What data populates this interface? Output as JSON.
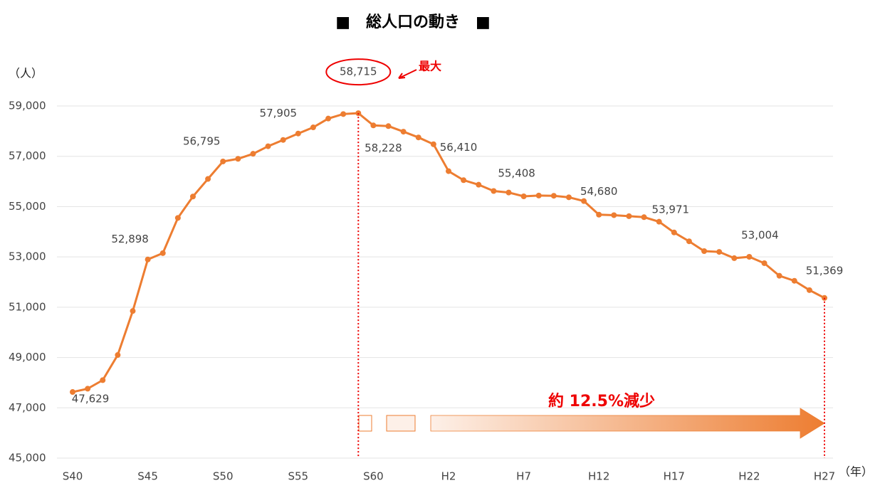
{
  "chart_data": {
    "type": "line",
    "title": "■　総人口の動き　■",
    "y_label": "（人）",
    "x_label": "（年）",
    "annotations": [
      "最大",
      "約 12.5%減少"
    ],
    "categories": [
      "S40",
      null,
      null,
      null,
      null,
      "S45",
      null,
      null,
      null,
      null,
      "S50",
      null,
      null,
      null,
      null,
      "S55",
      null,
      null,
      null,
      null,
      "S60",
      null,
      null,
      null,
      null,
      "H2",
      null,
      null,
      null,
      null,
      "H7",
      null,
      null,
      null,
      null,
      "H12",
      null,
      null,
      null,
      null,
      "H17",
      null,
      null,
      null,
      null,
      "H22",
      null,
      null,
      null,
      null,
      "H27"
    ],
    "series": [
      {
        "name": "総人口",
        "color": "#ed7d31",
        "values": [
          47629,
          47760,
          48100,
          49100,
          50850,
          52898,
          53150,
          54550,
          55400,
          56100,
          56795,
          56900,
          57100,
          57400,
          57650,
          57905,
          58150,
          58500,
          58680,
          58715,
          58228,
          58200,
          57980,
          57750,
          57480,
          56410,
          56050,
          55870,
          55620,
          55560,
          55408,
          55440,
          55430,
          55370,
          55220,
          54680,
          54660,
          54620,
          54580,
          54400,
          53971,
          53620,
          53230,
          53200,
          52950,
          53004,
          52750,
          52250,
          52050,
          51680,
          51369
        ],
        "value_labels": [
          "47,629",
          null,
          null,
          null,
          null,
          "52,898",
          null,
          null,
          null,
          null,
          "56,795",
          null,
          null,
          null,
          null,
          "57,905",
          null,
          null,
          null,
          "58,715",
          "58,228",
          null,
          null,
          null,
          null,
          "56,410",
          null,
          null,
          null,
          null,
          "55,408",
          null,
          null,
          null,
          null,
          "54,680",
          null,
          null,
          null,
          null,
          "53,971",
          null,
          null,
          null,
          null,
          "53,004",
          null,
          null,
          null,
          null,
          "51,369"
        ]
      }
    ],
    "ylim": [
      45000,
      59000
    ],
    "yticks": [
      {
        "value": 45000,
        "label": "45,000"
      },
      {
        "value": 47000,
        "label": "47,000"
      },
      {
        "value": 49000,
        "label": "49,000"
      },
      {
        "value": 51000,
        "label": "51,000"
      },
      {
        "value": 53000,
        "label": "53,000"
      },
      {
        "value": 55000,
        "label": "55,000"
      },
      {
        "value": 57000,
        "label": "57,000"
      },
      {
        "value": 59000,
        "label": "59,000"
      }
    ],
    "grid": true
  }
}
